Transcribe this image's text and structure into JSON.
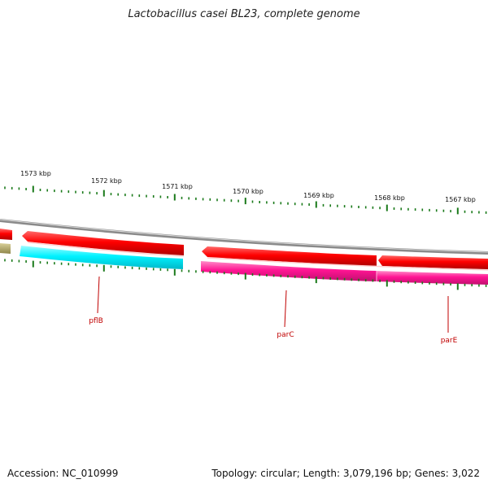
{
  "title": "Lactobacillus casei BL23, complete genome",
  "footer": {
    "accession_label": "Accession:",
    "accession": "NC_010999",
    "topology_label": "Topology:",
    "topology": "circular",
    "length_label": "Length:",
    "length": "3,079,196 bp",
    "genes_label": "Genes:",
    "genes": "3,022"
  },
  "colors": {
    "backbone": "#8a8a8a",
    "forward_gene": "#ff0000",
    "reverse_gene": "#ff1493",
    "cyan_gene": "#00ffff",
    "olive_gene": "#b5aa66",
    "tick": "#1a7a1a",
    "label_line": "#c00000",
    "label_text": "#c00000"
  },
  "scale": {
    "unit": "kbp",
    "ticks": [
      {
        "kbp": 1573,
        "label": "1573 kbp"
      },
      {
        "kbp": 1572,
        "label": "1572 kbp"
      },
      {
        "kbp": 1571,
        "label": "1571 kbp"
      },
      {
        "kbp": 1570,
        "label": "1570 kbp"
      },
      {
        "kbp": 1569,
        "label": "1569 kbp"
      },
      {
        "kbp": 1568,
        "label": "1568 kbp"
      },
      {
        "kbp": 1567,
        "label": "1567 kbp"
      }
    ]
  },
  "genes": [
    {
      "name": "pflB",
      "label": "pflB"
    },
    {
      "name": "parC",
      "label": "parC"
    },
    {
      "name": "parE",
      "label": "parE"
    }
  ]
}
